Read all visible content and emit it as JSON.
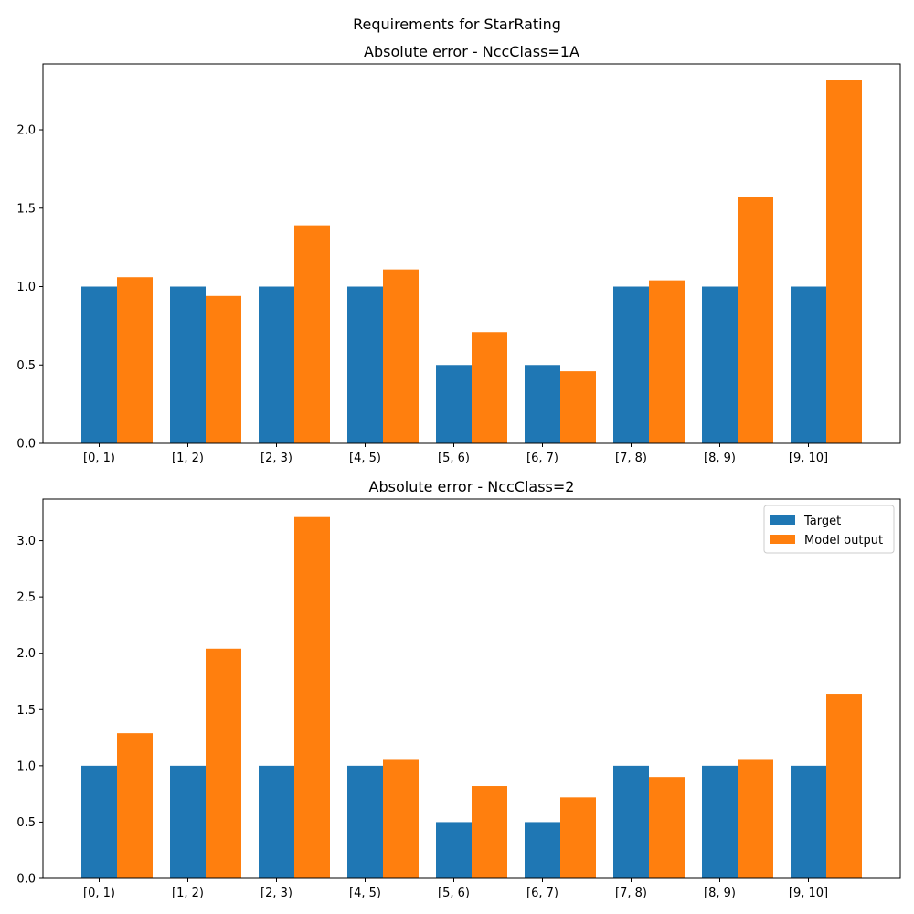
{
  "figure": {
    "title": "Requirements for StarRating"
  },
  "chart_data": [
    {
      "type": "bar",
      "title": "Absolute error - NccClass=1A",
      "xlabel": "",
      "ylabel": "",
      "categories": [
        "[0, 1)",
        "[1, 2)",
        "[2, 3)",
        "[4, 5)",
        "[5, 6)",
        "[6, 7)",
        "[7, 8)",
        "[8, 9)",
        "[9, 10]"
      ],
      "ylim": [
        0,
        2.42
      ],
      "yticks": [
        0.0,
        0.5,
        1.0,
        1.5,
        2.0
      ],
      "ytick_labels": [
        "0.0",
        "0.5",
        "1.0",
        "1.5",
        "2.0"
      ],
      "series": [
        {
          "name": "Target",
          "color": "#1f77b4",
          "values": [
            1.0,
            1.0,
            1.0,
            1.0,
            0.5,
            0.5,
            1.0,
            1.0,
            1.0
          ]
        },
        {
          "name": "Model output",
          "color": "#ff7f0e",
          "values": [
            1.06,
            0.94,
            1.39,
            1.11,
            0.71,
            0.46,
            1.04,
            1.57,
            2.32
          ]
        }
      ],
      "legend": null,
      "grid": false
    },
    {
      "type": "bar",
      "title": "Absolute error - NccClass=2",
      "xlabel": "",
      "ylabel": "",
      "categories": [
        "[0, 1)",
        "[1, 2)",
        "[2, 3)",
        "[4, 5)",
        "[5, 6)",
        "[6, 7)",
        "[7, 8)",
        "[8, 9)",
        "[9, 10]"
      ],
      "ylim": [
        0,
        3.37
      ],
      "yticks": [
        0.0,
        0.5,
        1.0,
        1.5,
        2.0,
        2.5,
        3.0
      ],
      "ytick_labels": [
        "0.0",
        "0.5",
        "1.0",
        "1.5",
        "2.0",
        "2.5",
        "3.0"
      ],
      "series": [
        {
          "name": "Target",
          "color": "#1f77b4",
          "values": [
            1.0,
            1.0,
            1.0,
            1.0,
            0.5,
            0.5,
            1.0,
            1.0,
            1.0
          ]
        },
        {
          "name": "Model output",
          "color": "#ff7f0e",
          "values": [
            1.29,
            2.04,
            3.21,
            1.06,
            0.82,
            0.72,
            0.9,
            1.06,
            1.64
          ]
        }
      ],
      "legend": "top-right",
      "grid": false
    }
  ]
}
